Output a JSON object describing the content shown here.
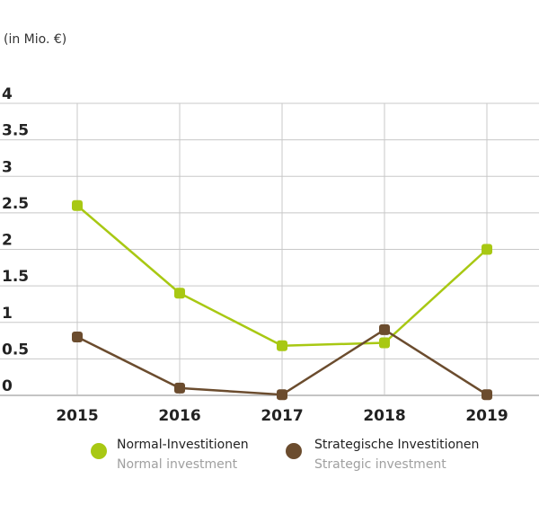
{
  "chart_data": {
    "type": "line",
    "unit_label": "(in Mio. €)",
    "x": [
      "2015",
      "2016",
      "2017",
      "2018",
      "2019"
    ],
    "ylim": [
      0,
      4
    ],
    "yticks": [
      "0",
      "0.5",
      "1",
      "1.5",
      "2",
      "2.5",
      "3",
      "3.5",
      "4"
    ],
    "grid": true,
    "legend_position": "bottom",
    "series": [
      {
        "name": "Normal-Investitionen",
        "subtitle": "Normal investment",
        "color": "#a8c813",
        "values": [
          2.6,
          1.4,
          0.68,
          0.72,
          2.0
        ]
      },
      {
        "name": "Strategische Investitionen",
        "subtitle": "Strategic investment",
        "color": "#6b4c2e",
        "values": [
          0.8,
          0.1,
          0.01,
          0.9,
          0.01
        ]
      }
    ]
  }
}
